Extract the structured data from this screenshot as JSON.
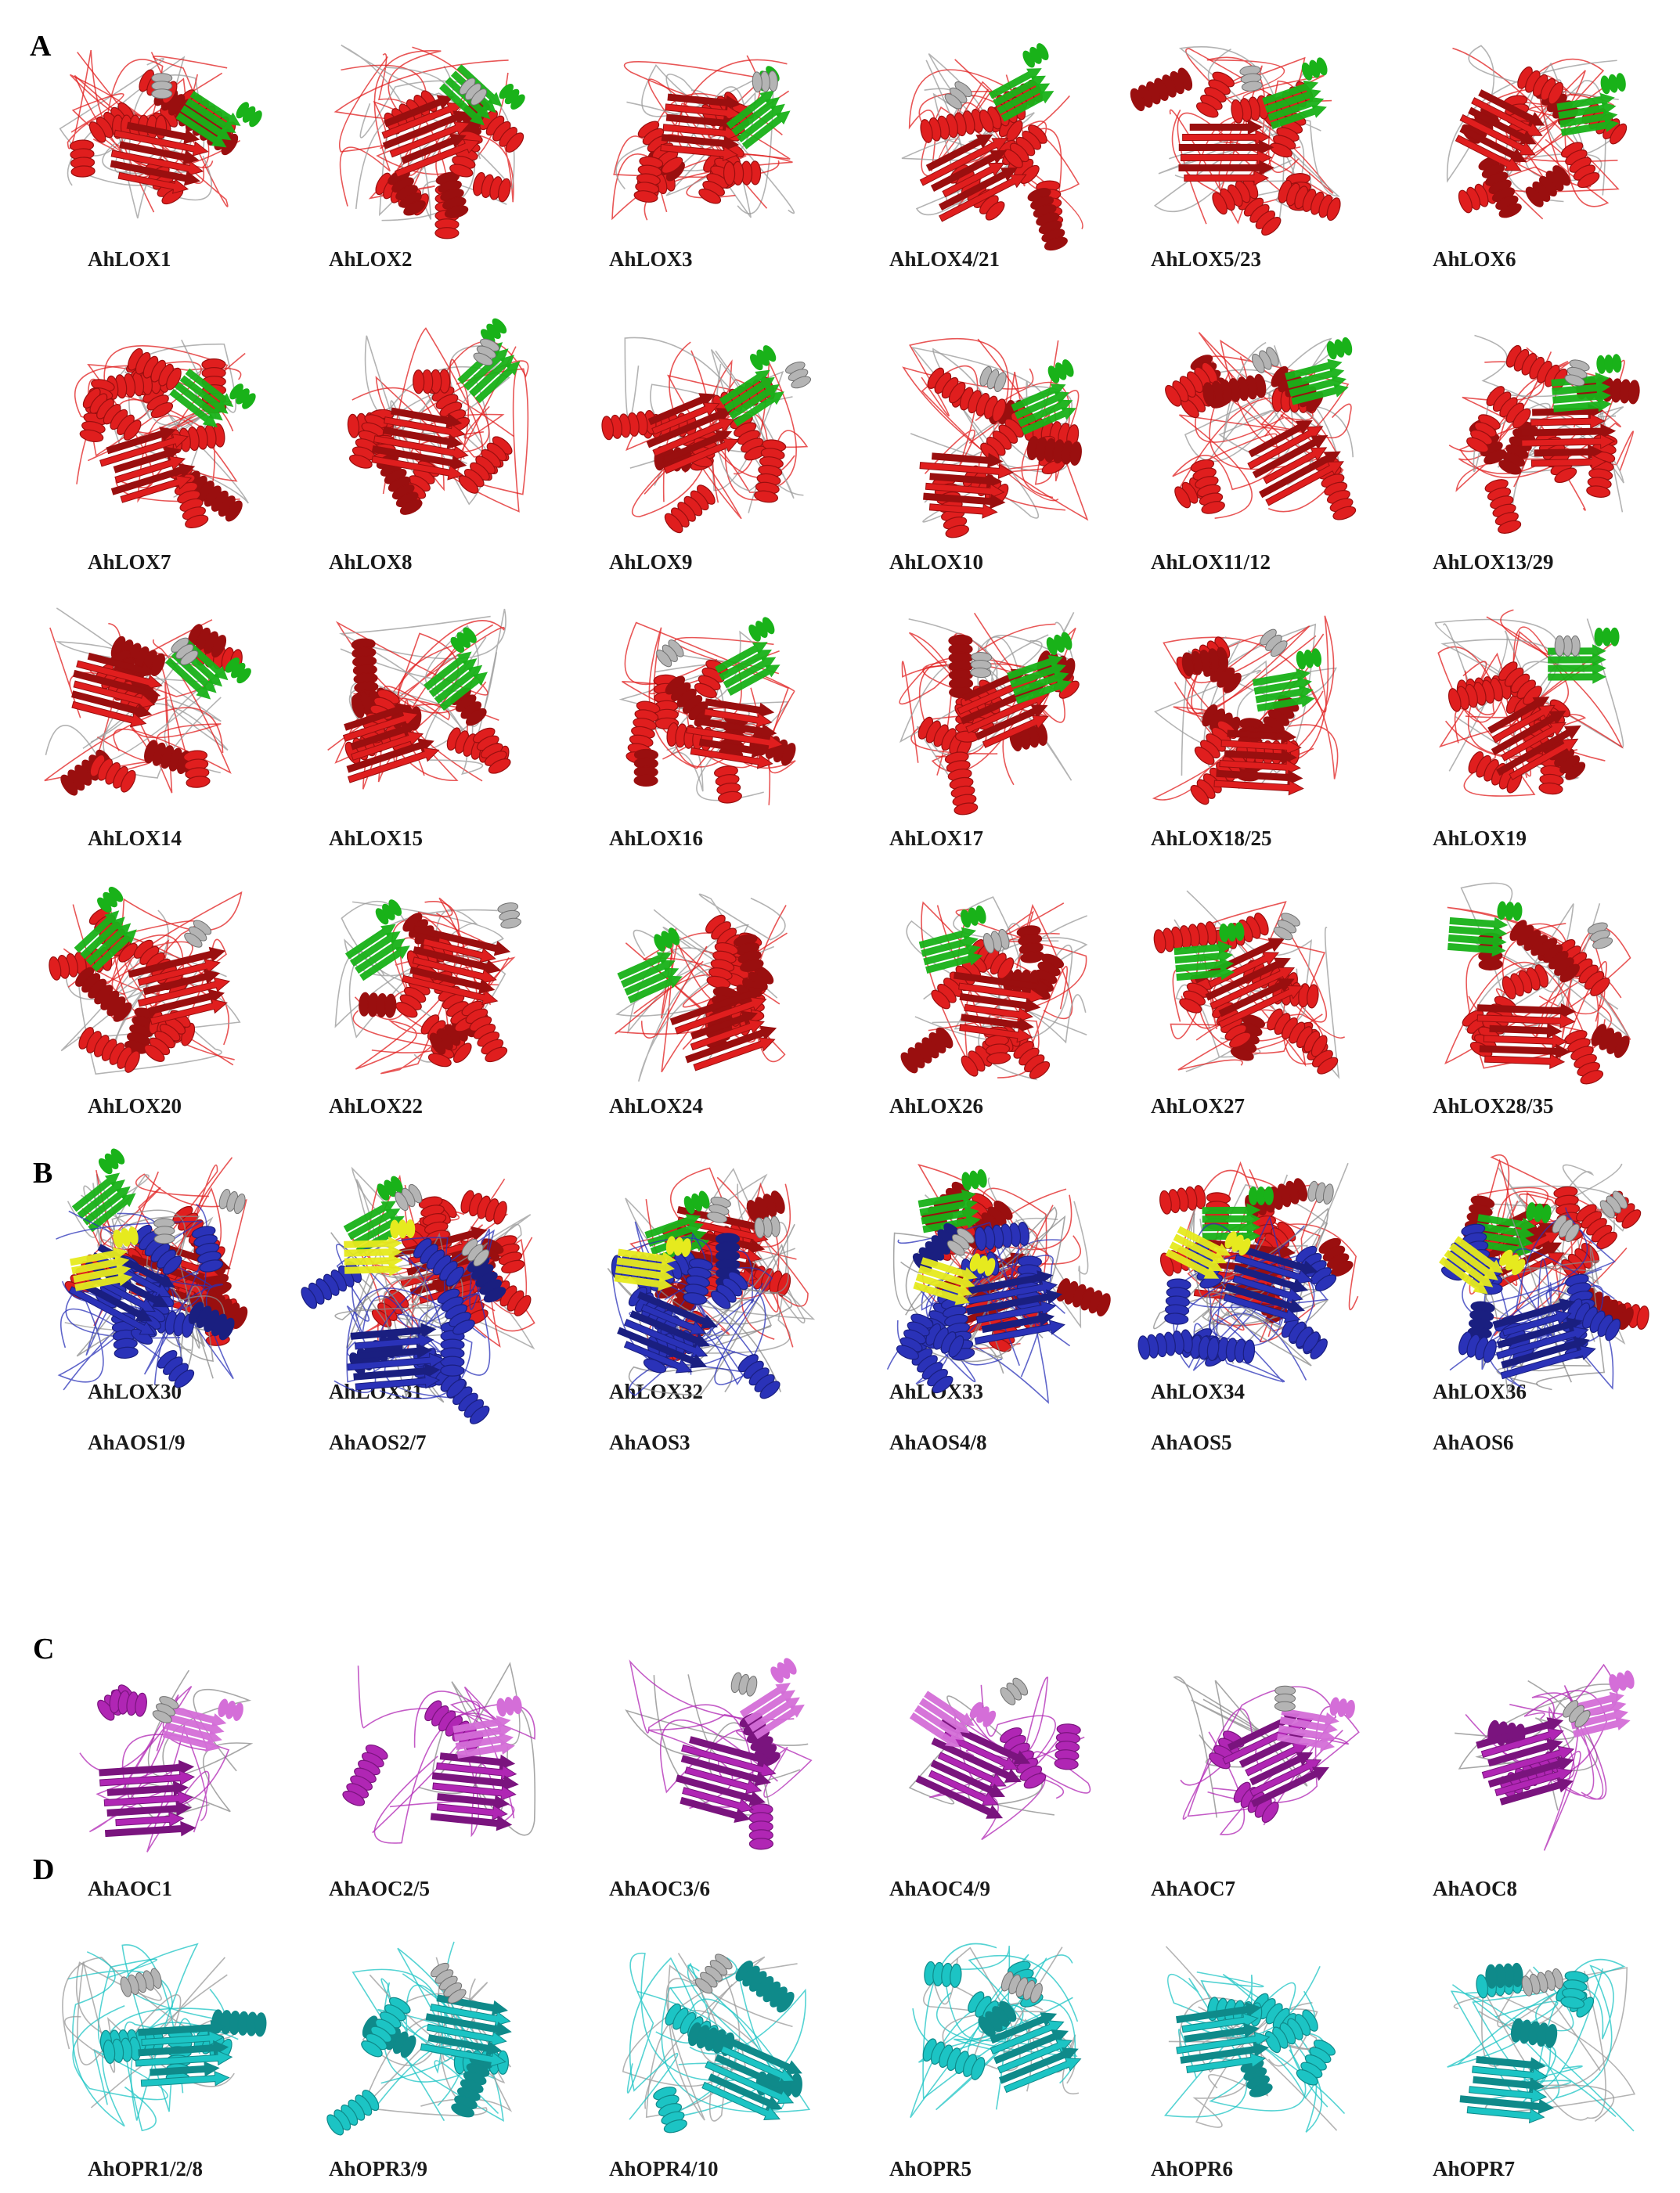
{
  "figure": {
    "panels": [
      {
        "letter": "A",
        "palette": {
          "core": "#e01e1e",
          "dark": "#9a0f0f",
          "domain": "#19b219",
          "linker": "#9a9a9a"
        },
        "rows": [
          [
            "AhLOX1",
            "AhLOX2",
            "AhLOX3",
            "AhLOX4/21",
            "AhLOX5/23",
            "AhLOX6"
          ],
          [
            "AhLOX7",
            "AhLOX8",
            "AhLOX9",
            "AhLOX10",
            "AhLOX11/12",
            "AhLOX13/29"
          ],
          [
            "AhLOX14",
            "AhLOX15",
            "AhLOX16",
            "AhLOX17",
            "AhLOX18/25",
            "AhLOX19"
          ],
          [
            "AhLOX20",
            "AhLOX22",
            "AhLOX24",
            "AhLOX26",
            "AhLOX27",
            "AhLOX28/35"
          ],
          [
            "AhLOX30",
            "AhLOX31",
            "AhLOX32",
            "AhLOX33",
            "AhLOX34",
            "AhLOX36"
          ]
        ]
      },
      {
        "letter": "B",
        "palette": {
          "core": "#2a32b8",
          "dark": "#1a1f80",
          "domain": "#e6ea1e",
          "linker": "#8a8a8a"
        },
        "rows": [
          [
            "AhAOS1/9",
            "AhAOS2/7",
            "AhAOS3",
            "AhAOS4/8",
            "AhAOS5",
            "AhAOS6"
          ]
        ]
      },
      {
        "letter": "C",
        "palette": {
          "core": "#b026b4",
          "dark": "#7a147e",
          "domain": "#d46ed8",
          "linker": "#8a8a8a"
        },
        "rows": [
          [
            "AhAOC1",
            "AhAOC2/5",
            "AhAOC3/6",
            "AhAOC4/9",
            "AhAOC7",
            "AhAOC8"
          ]
        ]
      },
      {
        "letter": "D",
        "palette": {
          "core": "#1cc4c4",
          "dark": "#0f8a8a",
          "domain": "#1cc4c4",
          "linker": "#9a9a9a"
        },
        "rows": [
          [
            "AhOPR1/2/8",
            "AhOPR3/9",
            "AhOPR4/10",
            "AhOPR5",
            "AhOPR6",
            "AhOPR7"
          ]
        ]
      }
    ]
  }
}
